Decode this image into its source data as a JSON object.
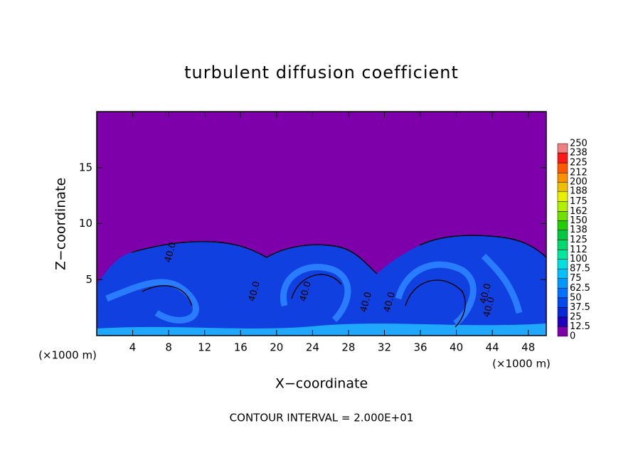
{
  "chart_data": {
    "type": "contour",
    "title": "turbulent diffusion coefficient",
    "x_label": "X−coordinate",
    "y_label": "Z−coordinate",
    "x_unit_left": "(×1000 m)",
    "x_unit_right": "(×1000 m)",
    "footer": "CONTOUR INTERVAL = 2.000E+01",
    "xlim": [
      0,
      50
    ],
    "xticks": [
      4,
      8,
      12,
      16,
      20,
      24,
      28,
      32,
      36,
      40,
      44,
      48
    ],
    "ylim": [
      0,
      20
    ],
    "yticks": [
      5,
      10,
      15
    ],
    "background_color": "#7d00aa",
    "contour_labels": [
      "40.0",
      "40.0",
      "40.0",
      "40.0",
      "40.0",
      "40.0",
      "40.0"
    ],
    "colorbar": {
      "ticks": [
        0,
        12.5,
        25,
        37.5,
        50,
        62.5,
        75,
        87.5,
        100,
        112,
        125,
        138,
        150,
        162,
        175,
        188,
        200,
        212,
        225,
        238,
        250
      ],
      "colors": [
        "#7d00aa",
        "#2000c0",
        "#0828d8",
        "#0048f0",
        "#0070ff",
        "#0098ff",
        "#00c0ff",
        "#00e0e0",
        "#00e8a0",
        "#00d870",
        "#00c840",
        "#20d000",
        "#70e000",
        "#b0f000",
        "#e8f000",
        "#f0c000",
        "#ff9000",
        "#ff5800",
        "#ff1818",
        "#f08080"
      ]
    }
  }
}
